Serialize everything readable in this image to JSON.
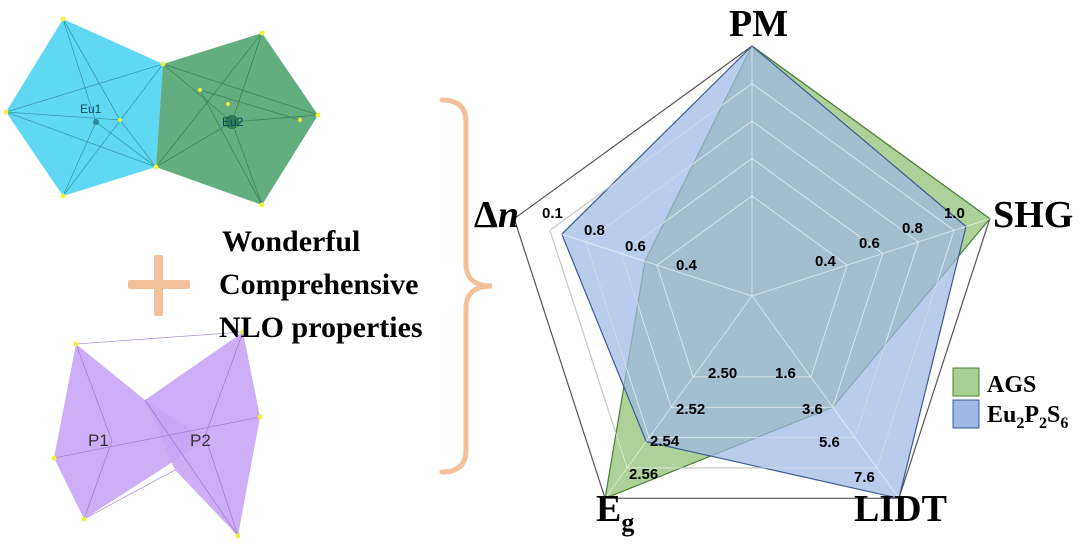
{
  "colors": {
    "cyan_poly": "#55d6f2",
    "green_poly": "#5aaa7a",
    "purple_poly": "#c8a6f6",
    "bracket": "#f2c09a",
    "plus": "#f2c09a",
    "ags_fill": "#a9cf92",
    "eps_fill": "#9fb8e4"
  },
  "icons": {
    "eu_polyhedra": "polyhedra-pair-icon",
    "p_polyhedra": "bowtie-polyhedra-icon",
    "plus": "plus-icon",
    "bracket": "right-brace-icon"
  },
  "left_panel": {
    "eu1_label": "Eu1",
    "eu2_label": "Eu2",
    "p1_label": "P1",
    "p2_label": "P2",
    "headline": [
      "Wonderful",
      "Comprehensive",
      "NLO properties"
    ]
  },
  "chart_data": {
    "type": "radar",
    "axes": [
      {
        "label": "PM",
        "ticks": []
      },
      {
        "label": "SHG",
        "ticks": [
          "0.4",
          "0.6",
          "0.8",
          "1.0"
        ]
      },
      {
        "label": "LIDT",
        "ticks": [
          "1.6",
          "3.6",
          "5.6",
          "7.6"
        ]
      },
      {
        "label": "E",
        "subscript": "g",
        "ticks": [
          "2.50",
          "2.52",
          "2.54",
          "2.56"
        ]
      },
      {
        "label": "Δ",
        "italic_suffix": "n",
        "ticks": [
          "0.4",
          "0.6",
          "0.8",
          "0.1"
        ]
      }
    ],
    "rings": 5,
    "grid": true,
    "legend_position": "right",
    "series": [
      {
        "name": "AGS",
        "color": "#a9cf92",
        "values": [
          1.0,
          1.0,
          0.55,
          1.0,
          0.45
        ]
      },
      {
        "name": "Eu2P2S6",
        "name_parts": [
          "Eu",
          "2",
          "P",
          "2",
          "S",
          "6"
        ],
        "color": "#9fb8e4",
        "values": [
          1.0,
          0.9,
          1.0,
          0.72,
          0.8
        ]
      }
    ]
  }
}
